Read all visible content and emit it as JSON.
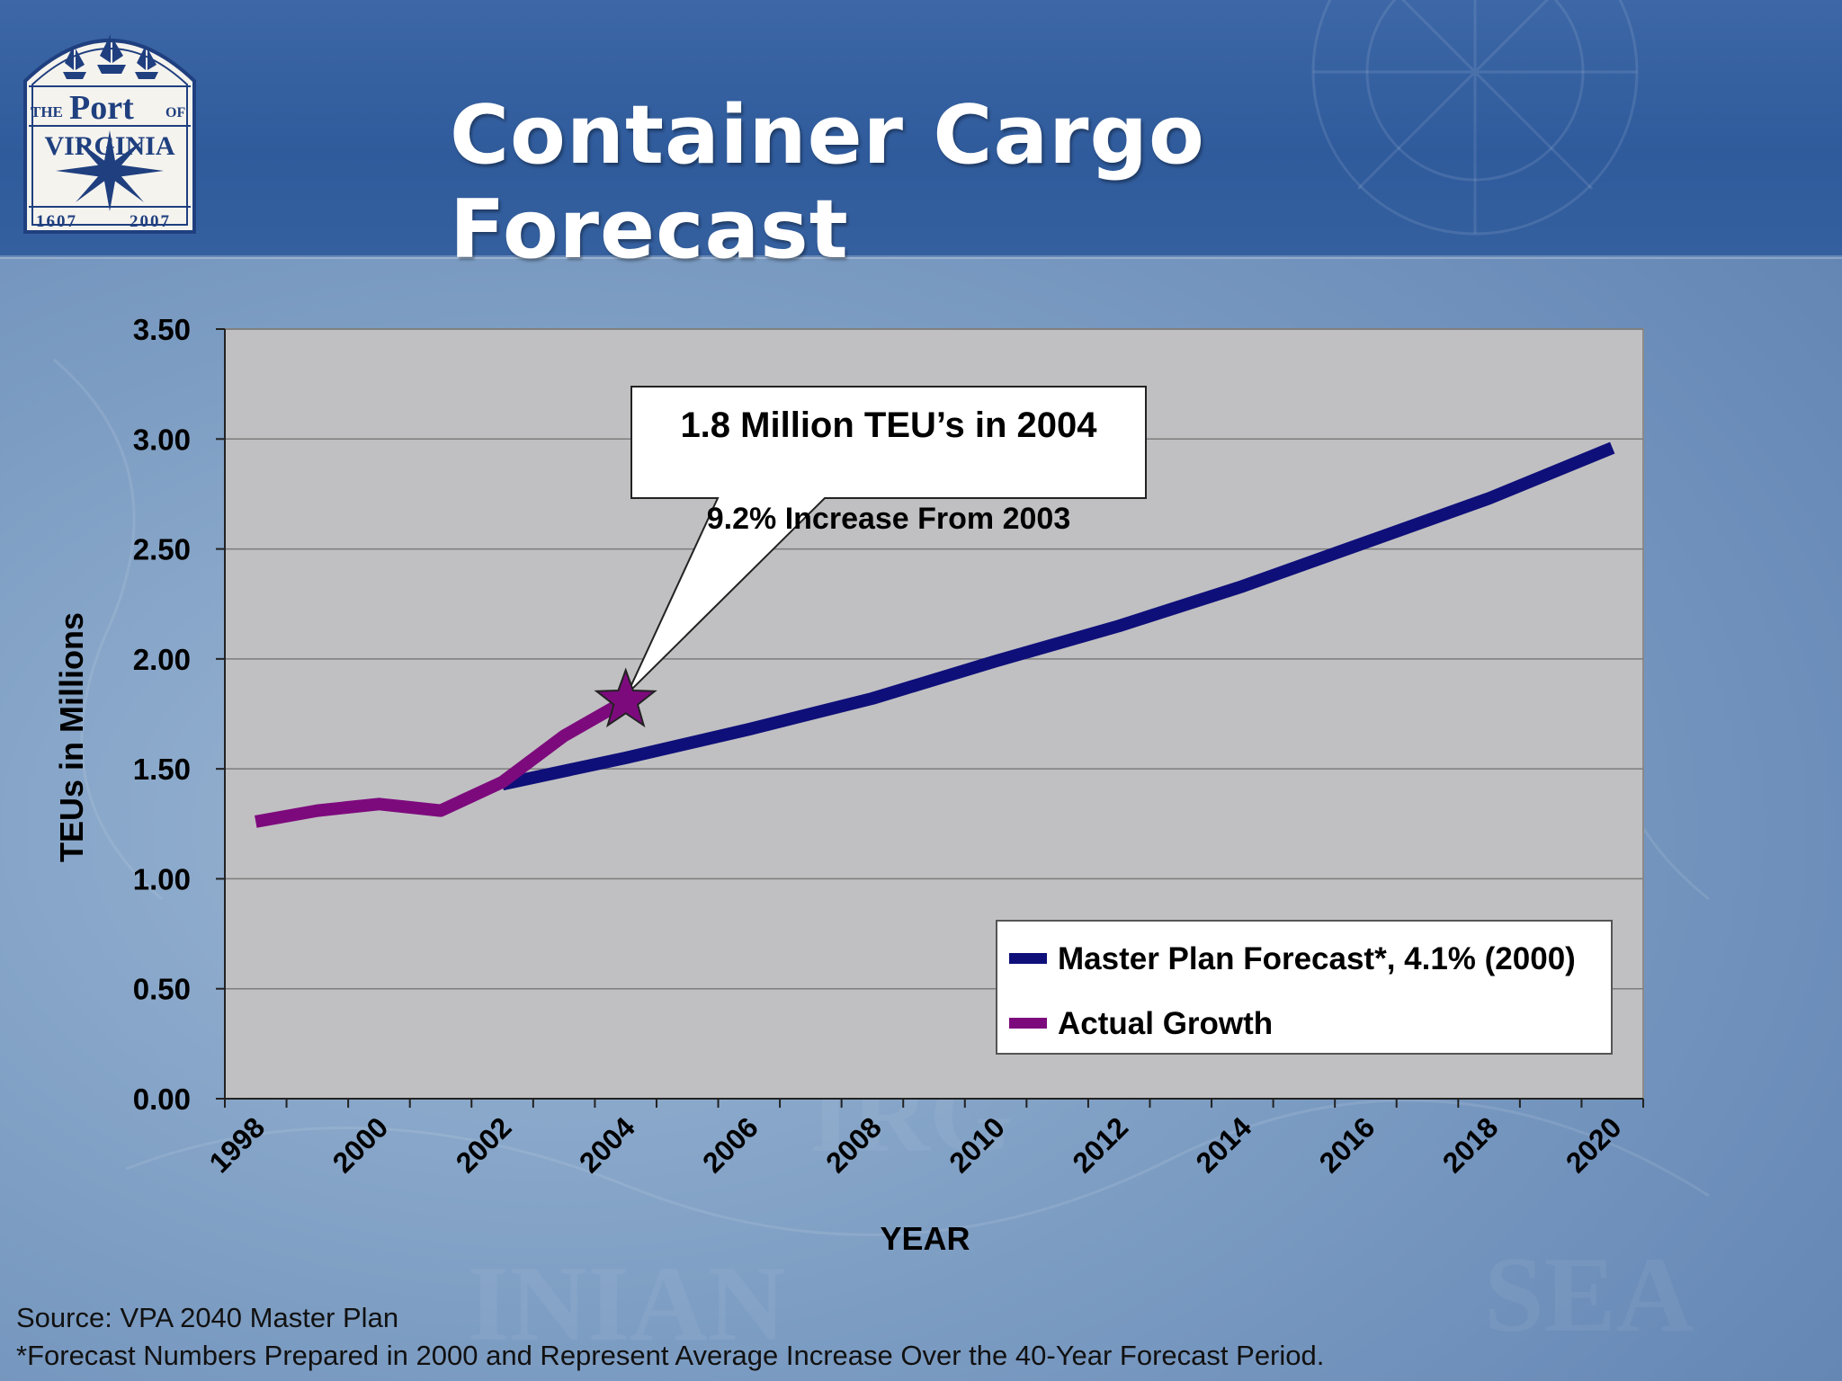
{
  "slide": {
    "title": "Container Cargo Forecast",
    "logo": {
      "line1": "THE",
      "line2": "Port",
      "line3": "OF",
      "line4": "VIRGINIA",
      "year_left": "1607",
      "year_right": "2007"
    },
    "footer": {
      "source": "Source:  VPA 2040 Master Plan",
      "note": "*Forecast Numbers Prepared in 2000 and Represent Average Increase Over the 40-Year Forecast Period."
    }
  },
  "colors": {
    "forecast": "#0f0f7a",
    "actual": "#7d0a7d",
    "plot_bg": "#c0c0c2",
    "title": "#ffffff"
  },
  "chart_data": {
    "type": "line",
    "xlabel": "YEAR",
    "ylabel": "TEUs in Millions",
    "ylim": [
      0,
      3.5
    ],
    "xlim": [
      1998,
      2020
    ],
    "y_ticks": [
      "0.00",
      "0.50",
      "1.00",
      "1.50",
      "2.00",
      "2.50",
      "3.00",
      "3.50"
    ],
    "x_tick_labels": [
      "1998",
      "2000",
      "2002",
      "2004",
      "2006",
      "2008",
      "2010",
      "2012",
      "2014",
      "2016",
      "2018",
      "2020"
    ],
    "grid": true,
    "legend_position": "bottom-right",
    "series": [
      {
        "name": "Master Plan Forecast*, 4.1% (2000)",
        "x": [
          2002,
          2004,
          2006,
          2008,
          2010,
          2012,
          2014,
          2016,
          2018,
          2020
        ],
        "values": [
          1.43,
          1.55,
          1.68,
          1.82,
          1.99,
          2.15,
          2.33,
          2.53,
          2.73,
          2.96
        ]
      },
      {
        "name": "Actual Growth",
        "x": [
          1998,
          1999,
          2000,
          2001,
          2002,
          2003,
          2004
        ],
        "values": [
          1.26,
          1.31,
          1.34,
          1.31,
          1.44,
          1.65,
          1.81
        ]
      }
    ],
    "annotation": {
      "headline": "1.8 Million TEU’s in 2004",
      "subtext": "9.2% Increase From 2003",
      "x": 2004,
      "y": 1.81,
      "marker": "star-icon"
    }
  }
}
